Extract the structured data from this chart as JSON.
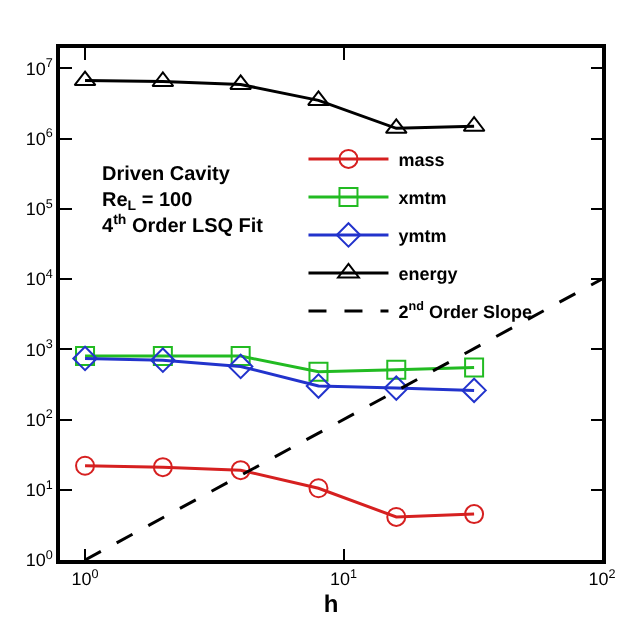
{
  "chart_data": {
    "type": "line",
    "xlabel": "h",
    "x": [
      1,
      2,
      4,
      8,
      16,
      32
    ],
    "series": [
      {
        "name": "mass",
        "color": "#d62020",
        "marker": "circle",
        "values": [
          22,
          21,
          19,
          10.5,
          4.1,
          4.5
        ]
      },
      {
        "name": "xmtm",
        "color": "#22bb22",
        "marker": "square",
        "values": [
          800,
          800,
          800,
          480,
          510,
          550
        ]
      },
      {
        "name": "ymtm",
        "color": "#2233cc",
        "marker": "diamond",
        "values": [
          740,
          700,
          570,
          300,
          280,
          260
        ]
      },
      {
        "name": "energy",
        "color": "#000000",
        "marker": "triangle",
        "values": [
          6700000,
          6500000,
          5900000,
          3500000,
          1400000,
          1500000
        ]
      },
      {
        "name": "2$^{nd}$ Order Slope",
        "color": "#000000",
        "marker": "none",
        "line_style": "dashed",
        "x": [
          1,
          100
        ],
        "values": [
          1,
          10000
        ]
      }
    ],
    "log": "xy",
    "xlim": [
      0.8,
      100
    ],
    "ylim": [
      1,
      19500000
    ],
    "xticks": [
      {
        "value": 1,
        "label": "10$^{0}$"
      },
      {
        "value": 10,
        "label": "10$^{1}$"
      },
      {
        "value": 100,
        "label": "10$^{2}$"
      }
    ],
    "yticks": [
      {
        "value": 1,
        "label": "10$^{0}$"
      },
      {
        "value": 10,
        "label": "10$^{1}$"
      },
      {
        "value": 100,
        "label": "10$^{2}$"
      },
      {
        "value": 1000,
        "label": "10$^{3}$"
      },
      {
        "value": 10000,
        "label": "10$^{4}$"
      },
      {
        "value": 100000,
        "label": "10$^{5}$"
      },
      {
        "value": 1000000,
        "label": "10$^{6}$"
      },
      {
        "value": 10000000,
        "label": "10$^{7}$"
      }
    ],
    "legend": "right",
    "annotations": [
      "Driven Cavity\nRe$_{L}$ = 100\n4$^{th}$ Order LSQ Fit"
    ]
  }
}
